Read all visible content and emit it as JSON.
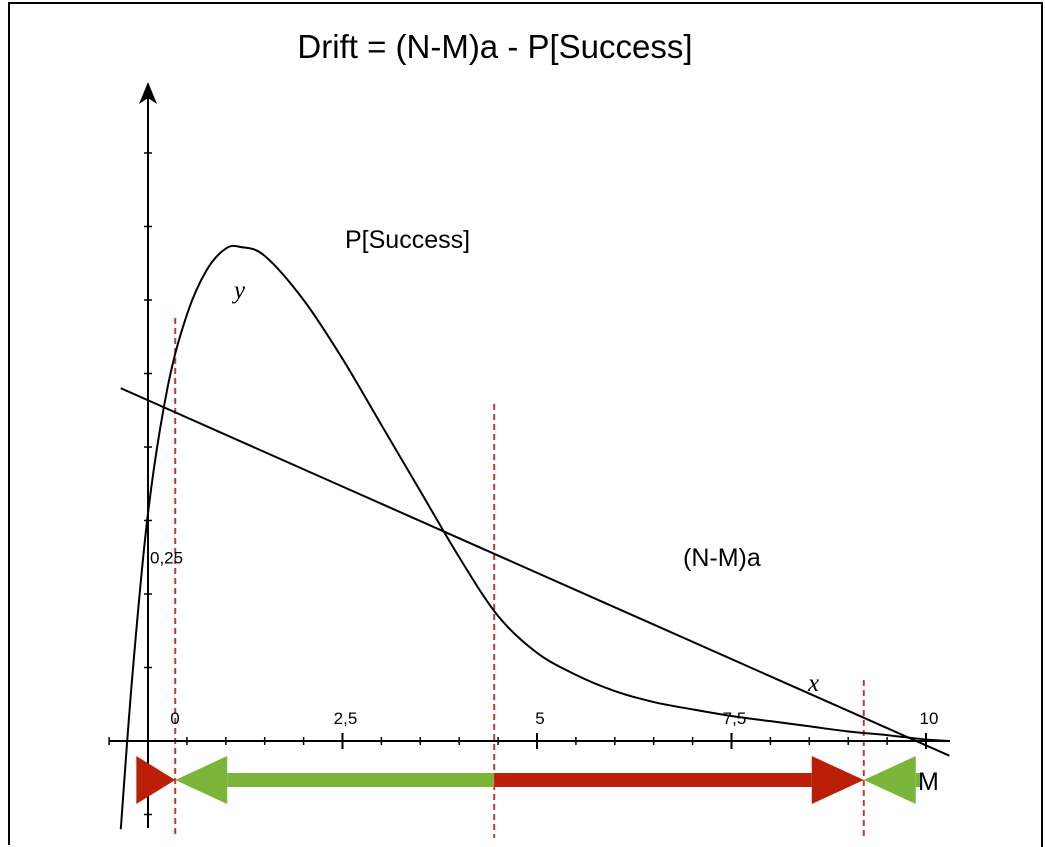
{
  "chart_data": {
    "type": "line",
    "title": "Drift = (N-M)a - P[Success]",
    "xlabel": "M",
    "ylabel": "",
    "xlim": [
      -0.37,
      10.3
    ],
    "ylim": [
      -0.1,
      0.82
    ],
    "x_ticks": [
      0,
      2.5,
      5,
      7.5,
      10
    ],
    "x_tick_labels": [
      "0",
      "2,5",
      "5",
      "7,5",
      "10"
    ],
    "y_ticks": [
      0.25
    ],
    "y_tick_labels": [
      "0,25"
    ],
    "series": [
      {
        "name": "P[Success]",
        "x": [
          -0.35,
          -0.2,
          0,
          0.25,
          0.5,
          0.75,
          1.0,
          1.2,
          1.5,
          2.0,
          2.5,
          3.0,
          3.5,
          4.0,
          4.5,
          5.0,
          5.5,
          6.0,
          6.5,
          7.0,
          7.5,
          8.0,
          8.5,
          9.0,
          9.5,
          10.0,
          10.3
        ],
        "values": [
          -0.12,
          0.09,
          0.31,
          0.48,
          0.58,
          0.64,
          0.67,
          0.672,
          0.66,
          0.6,
          0.52,
          0.43,
          0.34,
          0.25,
          0.17,
          0.12,
          0.09,
          0.068,
          0.053,
          0.043,
          0.034,
          0.027,
          0.02,
          0.013,
          0.008,
          0.002,
          0.0
        ]
      },
      {
        "name": "(N-M)a",
        "x": [
          -0.35,
          10.3
        ],
        "values": [
          0.48,
          -0.02
        ]
      }
    ],
    "vertical_lines": [
      0.35,
      4.45,
      9.2
    ],
    "point_labels": [
      {
        "text": "y",
        "x": 1.1,
        "y": 0.45
      },
      {
        "text": "x",
        "x": 8.7,
        "y": 0.04
      }
    ],
    "drift_arrows": [
      {
        "direction": "right",
        "from": -0.15,
        "to": 0.35,
        "color": "#bb1f08"
      },
      {
        "direction": "left",
        "from": 4.45,
        "to": 0.35,
        "color": "#7ab53a"
      },
      {
        "direction": "right",
        "from": 4.45,
        "to": 9.2,
        "color": "#bb1f08"
      },
      {
        "direction": "left",
        "from": 9.95,
        "to": 9.2,
        "color": "#7ab53a"
      }
    ],
    "grid": false,
    "legend": "none",
    "colors": {
      "curve": "#000000",
      "guide": "#c0392b",
      "drift_negative": "#7ab53a",
      "drift_positive": "#bb1f08"
    }
  }
}
